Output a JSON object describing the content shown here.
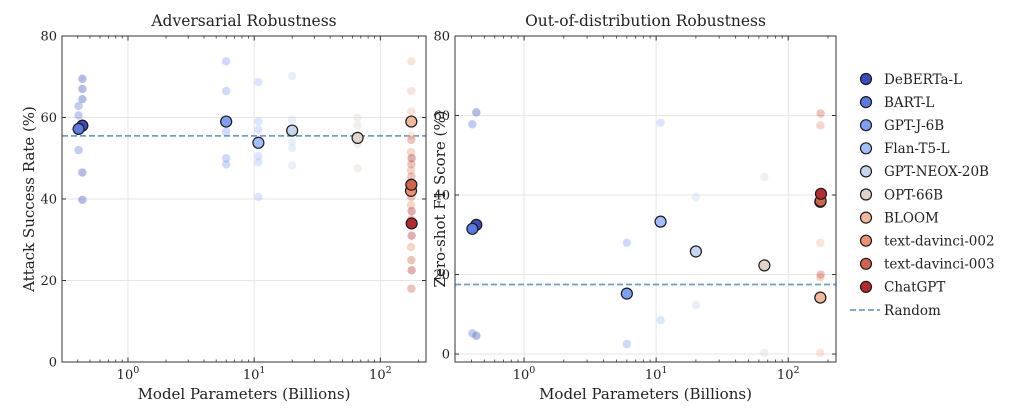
{
  "chart_data": [
    {
      "type": "scatter",
      "title": "Adversarial Robustness",
      "xlabel": "Model Parameters (Billions)",
      "ylabel": "Attack Success Rate (%)",
      "xscale": "log",
      "xlim": [
        0.3,
        230
      ],
      "ylim": [
        0,
        80
      ],
      "yticks": [
        0,
        20,
        40,
        60,
        80
      ],
      "xticks": [
        {
          "value": 1,
          "base": "10",
          "exp": "0"
        },
        {
          "value": 10,
          "base": "10",
          "exp": "1"
        },
        {
          "value": 100,
          "base": "10",
          "exp": "2"
        }
      ],
      "grid": true,
      "baseline": {
        "name": "Random",
        "y": 55.5
      },
      "series": [
        {
          "name": "DeBERTa-L",
          "color": "#3a4cc0",
          "main": [
            {
              "x": 0.435,
              "y": 58.0
            }
          ],
          "faint": [
            {
              "x": 0.435,
              "y": 69.5
            },
            {
              "x": 0.435,
              "y": 67.0
            },
            {
              "x": 0.435,
              "y": 64.5
            },
            {
              "x": 0.435,
              "y": 46.5
            },
            {
              "x": 0.435,
              "y": 39.8
            }
          ]
        },
        {
          "name": "BART-L",
          "color": "#5b7ae0",
          "main": [
            {
              "x": 0.406,
              "y": 57.2
            }
          ],
          "faint": [
            {
              "x": 0.406,
              "y": 62.8
            },
            {
              "x": 0.406,
              "y": 60.5
            },
            {
              "x": 0.406,
              "y": 52.0
            }
          ]
        },
        {
          "name": "GPT-J-6B",
          "color": "#7f9ff4",
          "main": [
            {
              "x": 6.0,
              "y": 59.0
            }
          ],
          "faint": [
            {
              "x": 6.0,
              "y": 73.8
            },
            {
              "x": 6.0,
              "y": 66.5
            },
            {
              "x": 6.0,
              "y": 56.5
            },
            {
              "x": 6.0,
              "y": 50.0
            },
            {
              "x": 6.0,
              "y": 48.5
            }
          ]
        },
        {
          "name": "Flan-T5-L",
          "color": "#a2bdfc",
          "main": [
            {
              "x": 10.8,
              "y": 53.8
            }
          ],
          "faint": [
            {
              "x": 10.8,
              "y": 68.7
            },
            {
              "x": 10.8,
              "y": 59.0
            },
            {
              "x": 10.8,
              "y": 57.0
            },
            {
              "x": 10.8,
              "y": 50.5
            },
            {
              "x": 10.8,
              "y": 49.0
            },
            {
              "x": 10.8,
              "y": 40.5
            }
          ]
        },
        {
          "name": "GPT-NEOX-20B",
          "color": "#c6d5f0",
          "main": [
            {
              "x": 20.0,
              "y": 56.8
            }
          ],
          "faint": [
            {
              "x": 20.0,
              "y": 70.2
            },
            {
              "x": 20.0,
              "y": 59.5
            },
            {
              "x": 20.0,
              "y": 54.0
            },
            {
              "x": 20.0,
              "y": 52.5
            },
            {
              "x": 20.0,
              "y": 48.2
            }
          ]
        },
        {
          "name": "OPT-66B",
          "color": "#e1d4cb",
          "main": [
            {
              "x": 66.0,
              "y": 55.0
            }
          ],
          "faint": [
            {
              "x": 66.0,
              "y": 60.0
            },
            {
              "x": 66.0,
              "y": 58.0
            },
            {
              "x": 66.0,
              "y": 53.5
            },
            {
              "x": 66.0,
              "y": 47.5
            }
          ]
        },
        {
          "name": "BLOOM",
          "color": "#f2b89a",
          "main": [
            {
              "x": 176.0,
              "y": 59.0
            }
          ],
          "faint": [
            {
              "x": 176.0,
              "y": 73.8
            },
            {
              "x": 176.0,
              "y": 66.5
            },
            {
              "x": 176.0,
              "y": 61.5
            },
            {
              "x": 176.0,
              "y": 55.5
            }
          ]
        },
        {
          "name": "text-davinci-002",
          "color": "#e8926f",
          "main": [
            {
              "x": 175.0,
              "y": 42.0
            }
          ],
          "faint": [
            {
              "x": 175.0,
              "y": 51.5
            },
            {
              "x": 175.0,
              "y": 47.0
            },
            {
              "x": 175.0,
              "y": 38.5
            },
            {
              "x": 175.0,
              "y": 28.2
            }
          ]
        },
        {
          "name": "text-davinci-003",
          "color": "#d3624f",
          "main": [
            {
              "x": 176.0,
              "y": 43.5
            }
          ],
          "faint": [
            {
              "x": 176.0,
              "y": 54.5
            },
            {
              "x": 176.0,
              "y": 48.5
            },
            {
              "x": 176.0,
              "y": 45.5
            },
            {
              "x": 176.0,
              "y": 40.5
            },
            {
              "x": 176.0,
              "y": 35.0
            },
            {
              "x": 176.0,
              "y": 25.0
            },
            {
              "x": 176.0,
              "y": 18.0
            }
          ]
        },
        {
          "name": "ChatGPT",
          "color": "#b32a30",
          "main": [
            {
              "x": 177.0,
              "y": 34.0
            }
          ],
          "faint": [
            {
              "x": 177.0,
              "y": 50.0
            },
            {
              "x": 177.0,
              "y": 37.0
            },
            {
              "x": 177.0,
              "y": 31.0
            },
            {
              "x": 177.0,
              "y": 22.5
            }
          ]
        }
      ]
    },
    {
      "type": "scatter",
      "title": "Out-of-distribution Robustness",
      "xlabel": "Model Parameters (Billions)",
      "ylabel": "Zero-shot F1 Score (%)",
      "xscale": "log",
      "xlim": [
        0.3,
        230
      ],
      "ylim": [
        -2,
        80
      ],
      "yticks": [
        0,
        20,
        40,
        60,
        80
      ],
      "xticks": [
        {
          "value": 1,
          "base": "10",
          "exp": "0"
        },
        {
          "value": 10,
          "base": "10",
          "exp": "1"
        },
        {
          "value": 100,
          "base": "10",
          "exp": "2"
        }
      ],
      "grid": true,
      "baseline": {
        "name": "Random",
        "y": 17.5
      },
      "legend": {
        "placement": "right"
      },
      "series": [
        {
          "name": "DeBERTa-L",
          "color": "#3a4cc0",
          "main": [
            {
              "x": 0.435,
              "y": 32.5
            }
          ],
          "faint": [
            {
              "x": 0.435,
              "y": 60.8
            },
            {
              "x": 0.435,
              "y": 4.6
            }
          ]
        },
        {
          "name": "BART-L",
          "color": "#5b7ae0",
          "main": [
            {
              "x": 0.406,
              "y": 31.5
            }
          ],
          "faint": [
            {
              "x": 0.406,
              "y": 57.8
            },
            {
              "x": 0.406,
              "y": 5.2
            }
          ]
        },
        {
          "name": "GPT-J-6B",
          "color": "#7f9ff4",
          "main": [
            {
              "x": 6.0,
              "y": 15.2
            }
          ],
          "faint": [
            {
              "x": 6.0,
              "y": 28.0
            },
            {
              "x": 6.0,
              "y": 2.5
            }
          ]
        },
        {
          "name": "Flan-T5-L",
          "color": "#a2bdfc",
          "main": [
            {
              "x": 10.8,
              "y": 33.3
            }
          ],
          "faint": [
            {
              "x": 10.8,
              "y": 58.2
            },
            {
              "x": 10.8,
              "y": 8.5
            }
          ]
        },
        {
          "name": "GPT-NEOX-20B",
          "color": "#c6d5f0",
          "main": [
            {
              "x": 20.0,
              "y": 25.8
            }
          ],
          "faint": [
            {
              "x": 20.0,
              "y": 39.5
            },
            {
              "x": 20.0,
              "y": 12.3
            }
          ]
        },
        {
          "name": "OPT-66B",
          "color": "#e1d4cb",
          "main": [
            {
              "x": 66.0,
              "y": 22.3
            }
          ],
          "faint": [
            {
              "x": 66.0,
              "y": 44.5
            },
            {
              "x": 66.0,
              "y": 0.3
            }
          ]
        },
        {
          "name": "BLOOM",
          "color": "#f2b89a",
          "main": [
            {
              "x": 175.0,
              "y": 14.2
            }
          ],
          "faint": [
            {
              "x": 175.0,
              "y": 28.0
            },
            {
              "x": 175.0,
              "y": 0.3
            }
          ]
        },
        {
          "name": "text-davinci-002",
          "color": "#e8926f",
          "main": [
            {
              "x": 175.0,
              "y": 38.3
            }
          ],
          "faint": [
            {
              "x": 175.0,
              "y": 57.5
            },
            {
              "x": 175.0,
              "y": 19.3
            }
          ]
        },
        {
          "name": "text-davinci-003",
          "color": "#d3624f",
          "main": [
            {
              "x": 176.0,
              "y": 38.5
            }
          ],
          "faint": [
            {
              "x": 176.0,
              "y": 60.5
            },
            {
              "x": 176.0,
              "y": 20.0
            }
          ]
        },
        {
          "name": "ChatGPT",
          "color": "#b32a30",
          "main": [
            {
              "x": 177.0,
              "y": 40.3
            }
          ],
          "faint": []
        }
      ]
    }
  ],
  "legend": {
    "items": [
      {
        "label": "DeBERTa-L",
        "color": "#3a4cc0"
      },
      {
        "label": "BART-L",
        "color": "#5b7ae0"
      },
      {
        "label": "GPT-J-6B",
        "color": "#7f9ff4"
      },
      {
        "label": "Flan-T5-L",
        "color": "#a2bdfc"
      },
      {
        "label": "GPT-NEOX-20B",
        "color": "#c6d5f0"
      },
      {
        "label": "OPT-66B",
        "color": "#e1d4cb"
      },
      {
        "label": "BLOOM",
        "color": "#f2b89a"
      },
      {
        "label": "text-davinci-002",
        "color": "#e8926f"
      },
      {
        "label": "text-davinci-003",
        "color": "#d3624f"
      },
      {
        "label": "ChatGPT",
        "color": "#b32a30"
      }
    ],
    "baseline_label": "Random",
    "baseline_color": "#6a9fd0"
  }
}
